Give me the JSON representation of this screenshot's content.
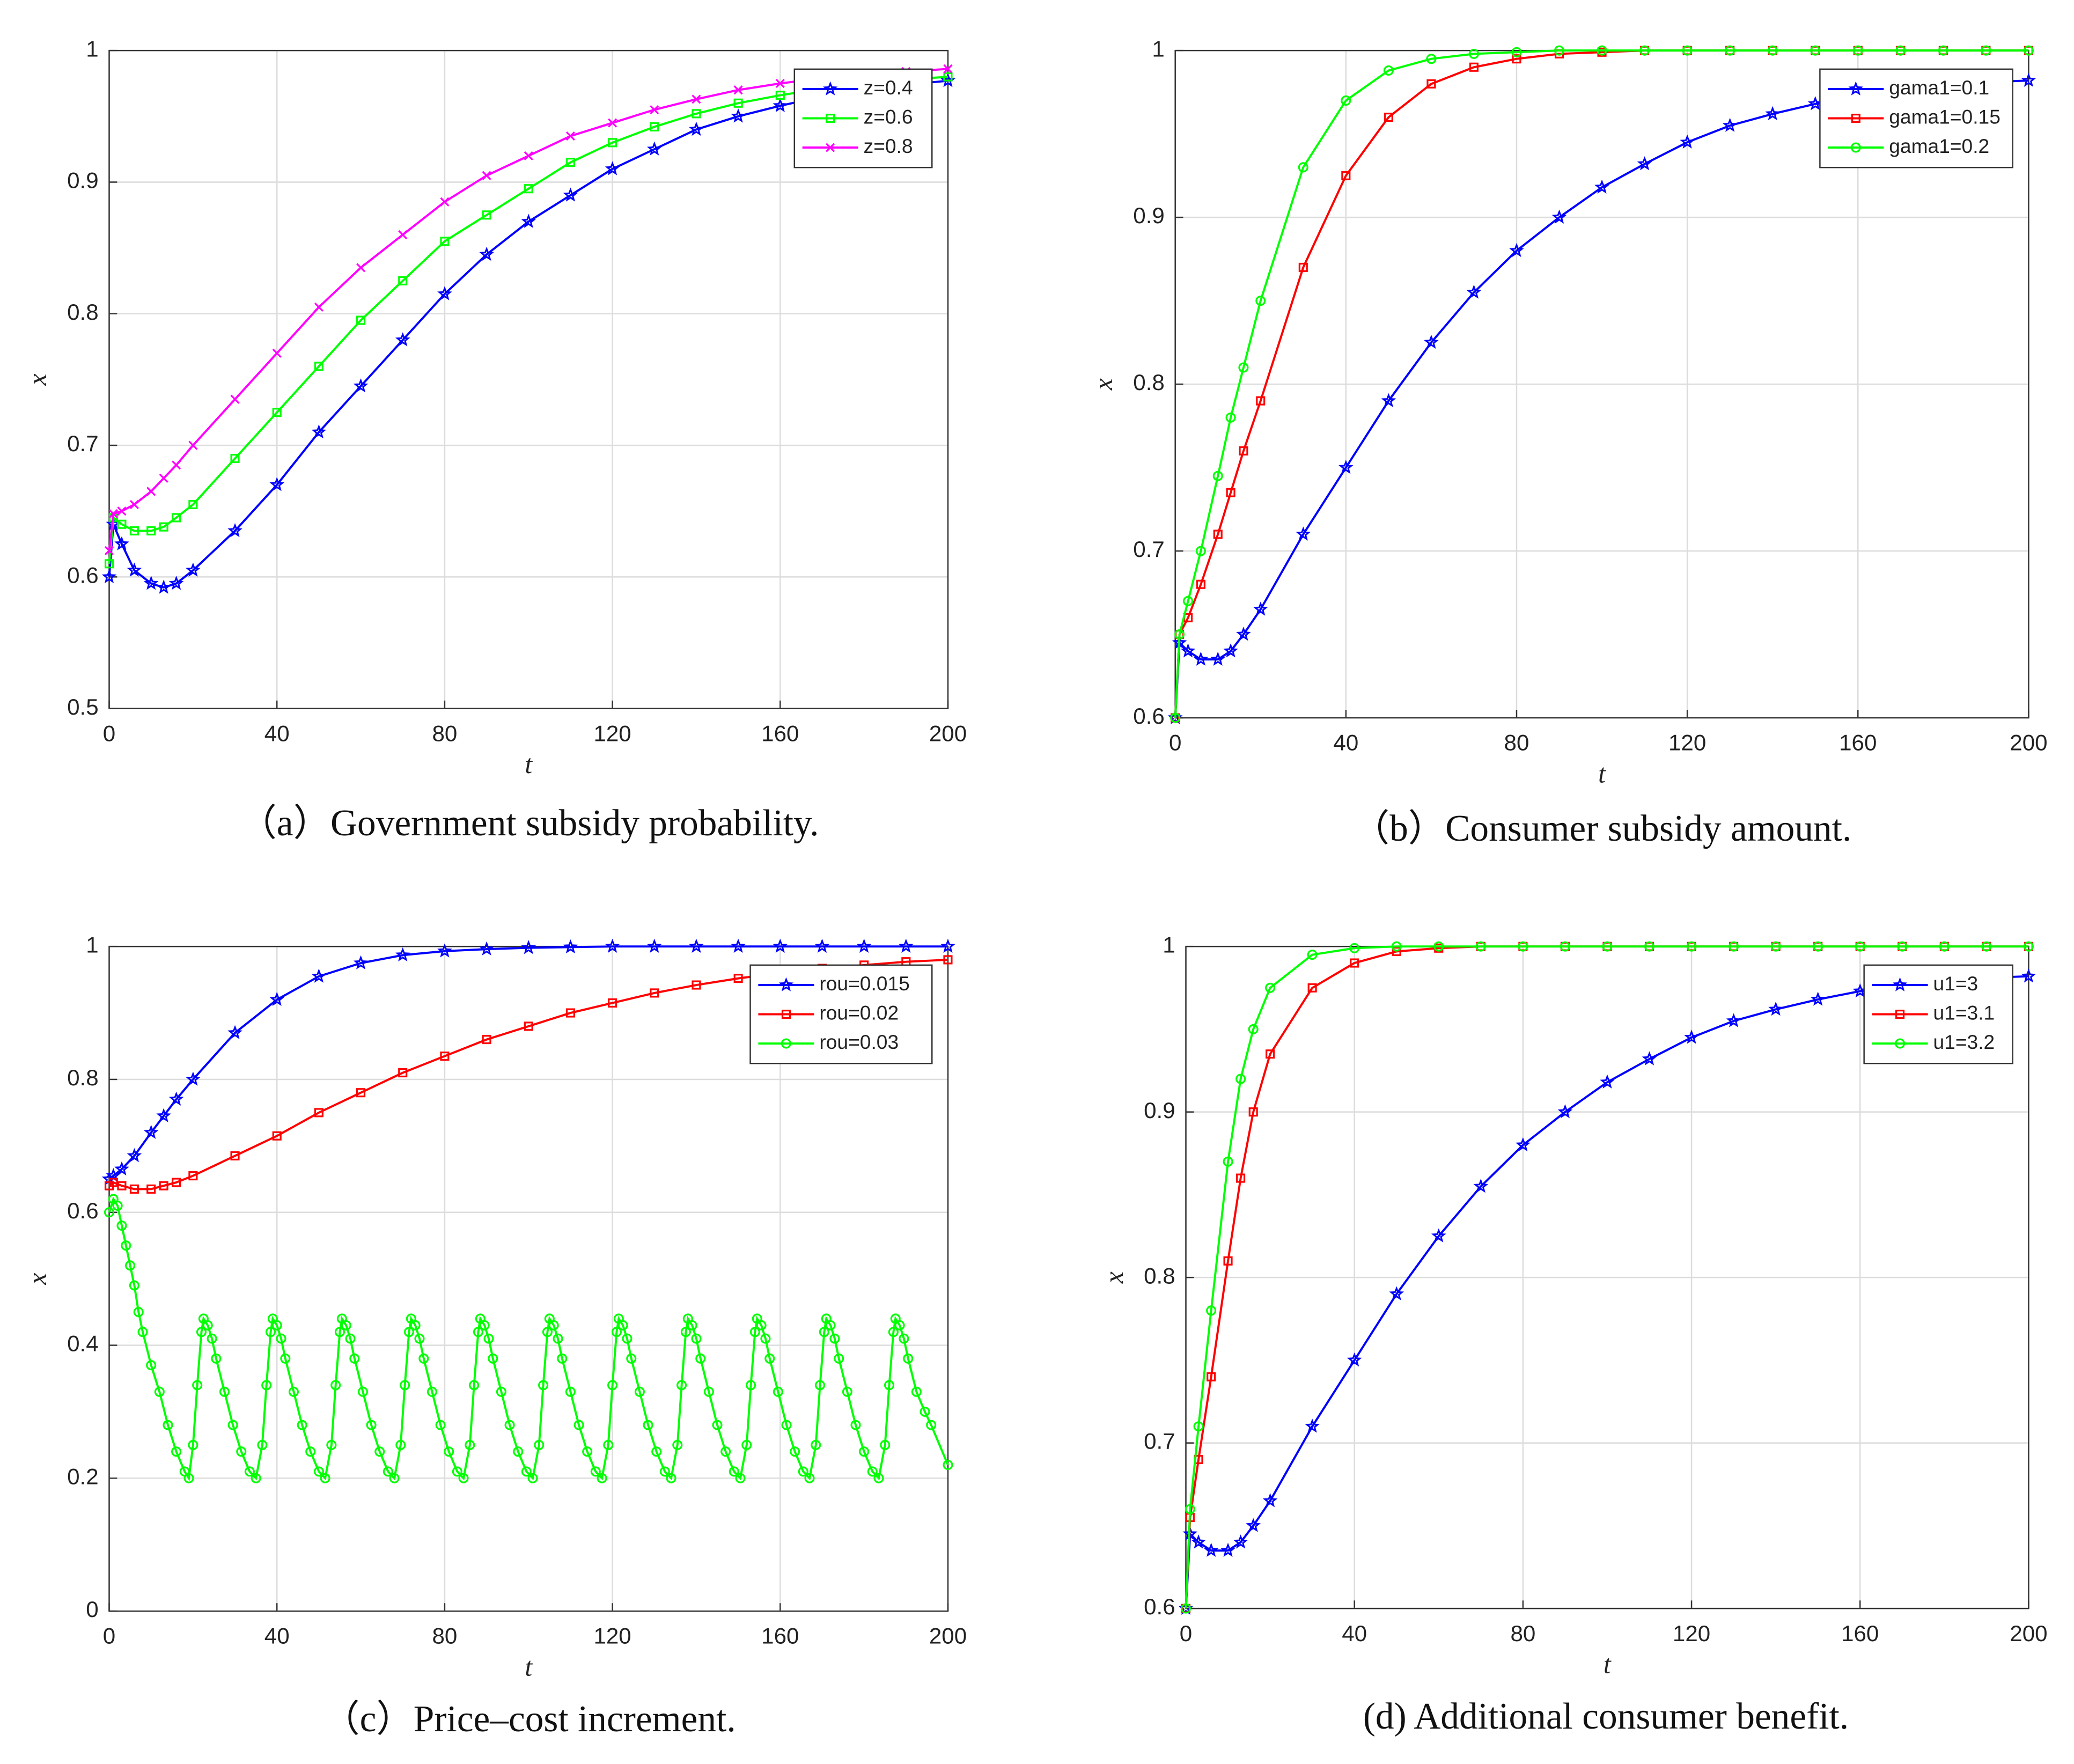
{
  "chart_data": [
    {
      "type": "line",
      "caption": "（a）Government subsidy probability.",
      "xlabel": "t",
      "ylabel": "x",
      "xlim": [
        0,
        200
      ],
      "xticks": [
        0,
        40,
        80,
        120,
        160,
        200
      ],
      "ylim": [
        0.5,
        1
      ],
      "yticks": [
        0.5,
        0.6,
        0.7,
        0.8,
        0.9,
        1
      ],
      "grid": true,
      "legend": "upper right",
      "x": [
        0,
        1,
        3,
        6,
        10,
        13,
        16,
        20,
        30,
        40,
        50,
        60,
        70,
        80,
        90,
        100,
        110,
        120,
        130,
        140,
        150,
        160,
        170,
        180,
        190,
        200
      ],
      "series": [
        {
          "name": "z=0.4",
          "color": "#0000ff",
          "marker": "star",
          "values": [
            0.6,
            0.64,
            0.625,
            0.605,
            0.595,
            0.592,
            0.595,
            0.605,
            0.635,
            0.67,
            0.71,
            0.745,
            0.78,
            0.815,
            0.845,
            0.87,
            0.89,
            0.91,
            0.925,
            0.94,
            0.95,
            0.958,
            0.965,
            0.97,
            0.974,
            0.977
          ]
        },
        {
          "name": "z=0.6",
          "color": "#00ff00",
          "marker": "square",
          "values": [
            0.61,
            0.645,
            0.64,
            0.635,
            0.635,
            0.638,
            0.645,
            0.655,
            0.69,
            0.725,
            0.76,
            0.795,
            0.825,
            0.855,
            0.875,
            0.895,
            0.915,
            0.93,
            0.942,
            0.952,
            0.96,
            0.966,
            0.971,
            0.975,
            0.978,
            0.98
          ]
        },
        {
          "name": "z=0.8",
          "color": "#ff00ff",
          "marker": "x",
          "values": [
            0.62,
            0.648,
            0.65,
            0.655,
            0.665,
            0.675,
            0.685,
            0.7,
            0.735,
            0.77,
            0.805,
            0.835,
            0.86,
            0.885,
            0.905,
            0.92,
            0.935,
            0.945,
            0.955,
            0.963,
            0.97,
            0.975,
            0.979,
            0.982,
            0.984,
            0.986
          ]
        }
      ]
    },
    {
      "type": "line",
      "caption": "（b）Consumer subsidy amount.",
      "xlabel": "t",
      "ylabel": "x",
      "xlim": [
        0,
        200
      ],
      "xticks": [
        0,
        40,
        80,
        120,
        160,
        200
      ],
      "ylim": [
        0.6,
        1
      ],
      "yticks": [
        0.6,
        0.7,
        0.8,
        0.9,
        1
      ],
      "grid": true,
      "legend": "upper right",
      "x": [
        0,
        1,
        3,
        6,
        10,
        13,
        16,
        20,
        30,
        40,
        50,
        60,
        70,
        80,
        90,
        100,
        110,
        120,
        130,
        140,
        150,
        160,
        170,
        180,
        190,
        200
      ],
      "series": [
        {
          "name": "gama1=0.1",
          "color": "#0000ff",
          "marker": "star",
          "values": [
            0.6,
            0.645,
            0.64,
            0.635,
            0.635,
            0.64,
            0.65,
            0.665,
            0.71,
            0.75,
            0.79,
            0.825,
            0.855,
            0.88,
            0.9,
            0.918,
            0.932,
            0.945,
            0.955,
            0.962,
            0.968,
            0.973,
            0.976,
            0.979,
            0.981,
            0.982
          ]
        },
        {
          "name": "gama1=0.15",
          "color": "#ff0000",
          "marker": "square",
          "values": [
            0.6,
            0.65,
            0.66,
            0.68,
            0.71,
            0.735,
            0.76,
            0.79,
            0.87,
            0.925,
            0.96,
            0.98,
            0.99,
            0.995,
            0.998,
            0.999,
            1,
            1,
            1,
            1,
            1,
            1,
            1,
            1,
            1,
            1
          ]
        },
        {
          "name": "gama1=0.2",
          "color": "#00ff00",
          "marker": "circle",
          "values": [
            0.6,
            0.65,
            0.67,
            0.7,
            0.745,
            0.78,
            0.81,
            0.85,
            0.93,
            0.97,
            0.988,
            0.995,
            0.998,
            0.999,
            1,
            1,
            1,
            1,
            1,
            1,
            1,
            1,
            1,
            1,
            1,
            1
          ]
        }
      ]
    },
    {
      "type": "line",
      "caption": "（c）Price–cost increment.",
      "xlabel": "t",
      "ylabel": "x",
      "xlim": [
        0,
        200
      ],
      "xticks": [
        0,
        40,
        80,
        120,
        160,
        200
      ],
      "ylim": [
        0,
        1
      ],
      "yticks": [
        0,
        0.2,
        0.4,
        0.6,
        0.8,
        1
      ],
      "grid": true,
      "legend": "upper right",
      "x": [
        0,
        1,
        3,
        6,
        10,
        13,
        16,
        20,
        30,
        40,
        50,
        60,
        70,
        80,
        90,
        100,
        110,
        120,
        130,
        140,
        150,
        160,
        170,
        180,
        190,
        200
      ],
      "series": [
        {
          "name": "rou=0.015",
          "color": "#0000ff",
          "marker": "star",
          "values": [
            0.65,
            0.655,
            0.665,
            0.685,
            0.72,
            0.745,
            0.77,
            0.8,
            0.87,
            0.92,
            0.955,
            0.975,
            0.987,
            0.993,
            0.996,
            0.998,
            0.999,
            1,
            1,
            1,
            1,
            1,
            1,
            1,
            1,
            1
          ]
        },
        {
          "name": "rou=0.02",
          "color": "#ff0000",
          "marker": "square",
          "values": [
            0.64,
            0.645,
            0.64,
            0.635,
            0.635,
            0.64,
            0.645,
            0.655,
            0.685,
            0.715,
            0.75,
            0.78,
            0.81,
            0.835,
            0.86,
            0.88,
            0.9,
            0.915,
            0.93,
            0.942,
            0.952,
            0.96,
            0.967,
            0.972,
            0.977,
            0.98
          ]
        },
        {
          "name": "rou=0.03",
          "color": "#00ff00",
          "marker": "circle",
          "x": [
            0,
            1,
            2,
            3,
            4,
            5,
            6,
            7,
            8,
            10,
            12,
            14,
            16,
            18,
            19,
            20,
            21,
            22,
            22.5,
            23.5,
            24.5,
            25.5,
            27.5,
            29.5,
            31.5,
            33.5,
            35,
            36.5,
            37.5,
            38.5,
            39,
            40,
            41,
            42,
            44,
            46,
            48,
            50,
            51.5,
            53,
            54,
            55,
            55.5,
            56.5,
            57.5,
            58.5,
            60.5,
            62.5,
            64.5,
            66.5,
            68,
            69.5,
            70.5,
            71.5,
            72,
            73,
            74,
            75,
            77,
            79,
            81,
            83,
            84.5,
            86,
            87,
            88,
            88.5,
            89.5,
            90.5,
            91.5,
            93.5,
            95.5,
            97.5,
            99.5,
            101,
            102.5,
            103.5,
            104.5,
            105,
            106,
            107,
            108,
            110,
            112,
            114,
            116,
            117.5,
            119,
            120,
            121,
            121.5,
            122.5,
            123.5,
            124.5,
            126.5,
            128.5,
            130.5,
            132.5,
            134,
            135.5,
            136.5,
            137.5,
            138,
            139,
            140,
            141,
            143,
            145,
            147,
            149,
            150.5,
            152,
            153,
            154,
            154.5,
            155.5,
            156.5,
            157.5,
            159.5,
            161.5,
            163.5,
            165.5,
            167,
            168.5,
            169.5,
            170.5,
            171,
            172,
            173,
            174,
            176,
            178,
            180,
            182,
            183.5,
            185,
            186,
            187,
            187.5,
            188.5,
            189.5,
            190.5,
            192.5,
            194.5,
            196,
            200
          ],
          "values": [
            0.6,
            0.62,
            0.61,
            0.58,
            0.55,
            0.52,
            0.49,
            0.45,
            0.42,
            0.37,
            0.33,
            0.28,
            0.24,
            0.21,
            0.2,
            0.25,
            0.34,
            0.42,
            0.44,
            0.43,
            0.41,
            0.38,
            0.33,
            0.28,
            0.24,
            0.21,
            0.2,
            0.25,
            0.34,
            0.42,
            0.44,
            0.43,
            0.41,
            0.38,
            0.33,
            0.28,
            0.24,
            0.21,
            0.2,
            0.25,
            0.34,
            0.42,
            0.44,
            0.43,
            0.41,
            0.38,
            0.33,
            0.28,
            0.24,
            0.21,
            0.2,
            0.25,
            0.34,
            0.42,
            0.44,
            0.43,
            0.41,
            0.38,
            0.33,
            0.28,
            0.24,
            0.21,
            0.2,
            0.25,
            0.34,
            0.42,
            0.44,
            0.43,
            0.41,
            0.38,
            0.33,
            0.28,
            0.24,
            0.21,
            0.2,
            0.25,
            0.34,
            0.42,
            0.44,
            0.43,
            0.41,
            0.38,
            0.33,
            0.28,
            0.24,
            0.21,
            0.2,
            0.25,
            0.34,
            0.42,
            0.44,
            0.43,
            0.41,
            0.38,
            0.33,
            0.28,
            0.24,
            0.21,
            0.2,
            0.25,
            0.34,
            0.42,
            0.44,
            0.43,
            0.41,
            0.38,
            0.33,
            0.28,
            0.24,
            0.21,
            0.2,
            0.25,
            0.34,
            0.42,
            0.44,
            0.43,
            0.41,
            0.38,
            0.33,
            0.28,
            0.24,
            0.21,
            0.2,
            0.25,
            0.34,
            0.42,
            0.44,
            0.43,
            0.41,
            0.38,
            0.33,
            0.28,
            0.24,
            0.21,
            0.2,
            0.25,
            0.34,
            0.42,
            0.44,
            0.43,
            0.41,
            0.38,
            0.33,
            0.3,
            0.28,
            0.22
          ]
        }
      ]
    },
    {
      "type": "line",
      "caption": "(d) Additional consumer benefit.",
      "xlabel": "t",
      "ylabel": "x",
      "xlim": [
        0,
        200
      ],
      "xticks": [
        0,
        40,
        80,
        120,
        160,
        200
      ],
      "ylim": [
        0.6,
        1
      ],
      "yticks": [
        0.6,
        0.7,
        0.8,
        0.9,
        1
      ],
      "grid": true,
      "legend": "upper right",
      "x": [
        0,
        1,
        3,
        6,
        10,
        13,
        16,
        20,
        30,
        40,
        50,
        60,
        70,
        80,
        90,
        100,
        110,
        120,
        130,
        140,
        150,
        160,
        170,
        180,
        190,
        200
      ],
      "series": [
        {
          "name": "u1=3",
          "color": "#0000ff",
          "marker": "star",
          "values": [
            0.6,
            0.645,
            0.64,
            0.635,
            0.635,
            0.64,
            0.65,
            0.665,
            0.71,
            0.75,
            0.79,
            0.825,
            0.855,
            0.88,
            0.9,
            0.918,
            0.932,
            0.945,
            0.955,
            0.962,
            0.968,
            0.973,
            0.976,
            0.979,
            0.981,
            0.982
          ]
        },
        {
          "name": "u1=3.1",
          "color": "#ff0000",
          "marker": "square",
          "values": [
            0.6,
            0.655,
            0.69,
            0.74,
            0.81,
            0.86,
            0.9,
            0.935,
            0.975,
            0.99,
            0.997,
            0.999,
            1,
            1,
            1,
            1,
            1,
            1,
            1,
            1,
            1,
            1,
            1,
            1,
            1,
            1
          ]
        },
        {
          "name": "u1=3.2",
          "color": "#00ff00",
          "marker": "circle",
          "values": [
            0.6,
            0.66,
            0.71,
            0.78,
            0.87,
            0.92,
            0.95,
            0.975,
            0.995,
            0.999,
            1,
            1,
            1,
            1,
            1,
            1,
            1,
            1,
            1,
            1,
            1,
            1,
            1,
            1,
            1,
            1
          ]
        }
      ]
    }
  ]
}
